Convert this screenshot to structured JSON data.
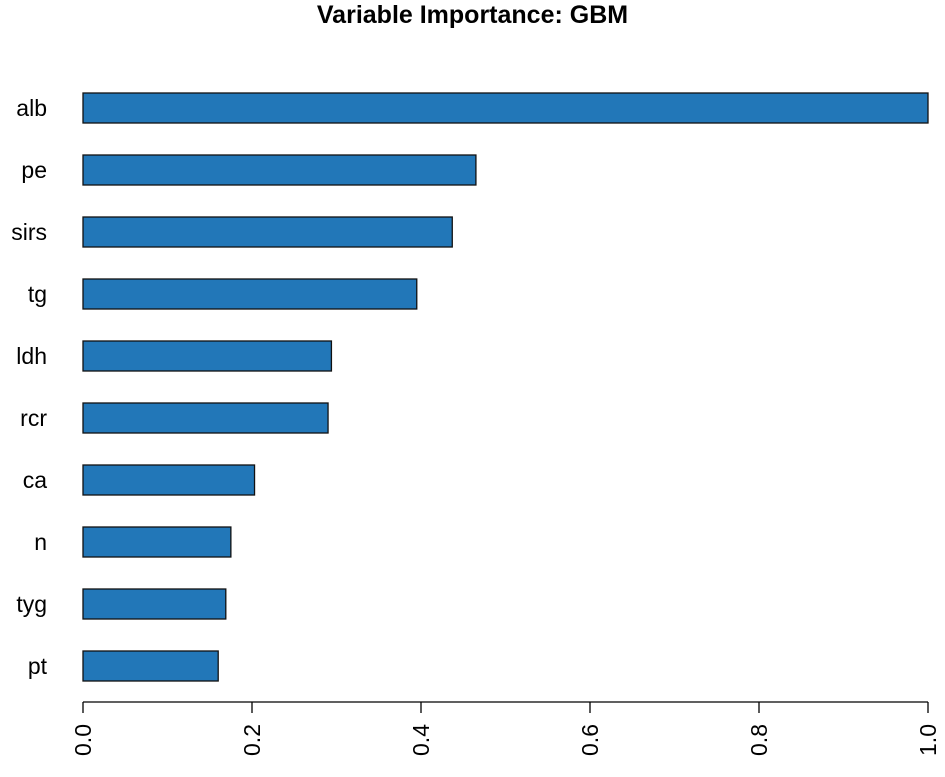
{
  "chart_data": {
    "type": "bar",
    "orientation": "horizontal",
    "title": "Variable Importance: GBM",
    "xlabel": "",
    "ylabel": "",
    "categories": [
      "alb",
      "pe",
      "sirs",
      "tg",
      "ldh",
      "rcr",
      "ca",
      "n",
      "tyg",
      "pt"
    ],
    "values": [
      1.0,
      0.465,
      0.437,
      0.395,
      0.294,
      0.29,
      0.203,
      0.175,
      0.169,
      0.16
    ],
    "xlim": [
      0,
      1.0
    ],
    "xticks": [
      0.0,
      0.2,
      0.4,
      0.6,
      0.8,
      1.0
    ],
    "xtick_labels": [
      "0.0",
      "0.2",
      "0.4",
      "0.6",
      "0.8",
      "1.0"
    ],
    "grid": false,
    "legend": "none",
    "bar_color": "#2277b8"
  }
}
